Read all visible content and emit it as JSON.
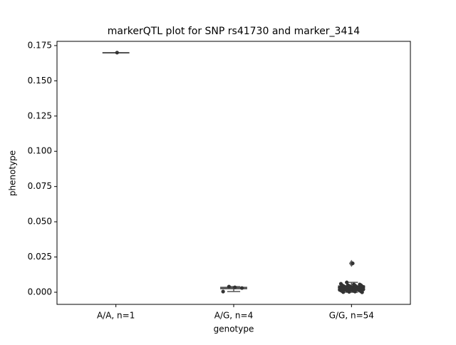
{
  "chart_data": {
    "type": "box",
    "title": "markerQTL plot for SNP rs41730 and marker_3414",
    "xlabel": "genotype",
    "ylabel": "phenotype",
    "categories": [
      "A/A, n=1",
      "A/G, n=4",
      "G/G, n=54"
    ],
    "box_color": "#555555",
    "point_color": "#333333",
    "boxes": [
      {
        "low": 0.17,
        "q1": 0.17,
        "median": 0.17,
        "q3": 0.17,
        "high": 0.17,
        "outliers": []
      },
      {
        "low": 0.0005,
        "q1": 0.0025,
        "median": 0.003,
        "q3": 0.0035,
        "high": 0.004,
        "outliers": []
      },
      {
        "low": 0.0,
        "q1": 0.002,
        "median": 0.003,
        "q3": 0.0045,
        "high": 0.007,
        "outliers": [
          0.0205
        ]
      }
    ],
    "points": [
      [
        0.17
      ],
      [
        0.0035,
        0.004,
        0.0005,
        0.003
      ],
      [
        0.0205,
        0.007,
        0.006,
        0.0055,
        0.0055,
        0.005,
        0.005,
        0.005,
        0.0048,
        0.0045,
        0.0045,
        0.0042,
        0.004,
        0.004,
        0.004,
        0.0038,
        0.0036,
        0.0035,
        0.0035,
        0.0034,
        0.0033,
        0.0032,
        0.003,
        0.003,
        0.003,
        0.003,
        0.0028,
        0.0027,
        0.0026,
        0.0025,
        0.0025,
        0.0024,
        0.0023,
        0.0022,
        0.0021,
        0.002,
        0.002,
        0.002,
        0.0019,
        0.0018,
        0.0017,
        0.0016,
        0.0015,
        0.0014,
        0.0013,
        0.0012,
        0.001,
        0.001,
        0.0008,
        0.0007,
        0.0005,
        0.0003,
        0.0001,
        0.0
      ]
    ],
    "ylim": [
      -0.0086,
      0.178
    ],
    "yticks": [
      {
        "value": 0,
        "label": "0.000"
      },
      0.025,
      {
        "value": 0.05,
        "label": "0.050"
      },
      0.075,
      {
        "value": 0.1,
        "label": "0.100"
      },
      0.125,
      {
        "value": 0.15,
        "label": "0.150"
      },
      0.175
    ]
  }
}
